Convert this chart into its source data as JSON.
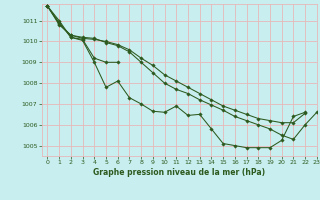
{
  "background_color": "#c8eef0",
  "grid_color": "#e8b8b8",
  "line_color": "#2d5a1e",
  "marker_color": "#2d5a1e",
  "xlabel": "Graphe pression niveau de la mer (hPa)",
  "ylim": [
    1004.5,
    1011.8
  ],
  "xlim": [
    -0.5,
    23
  ],
  "yticks": [
    1005,
    1006,
    1007,
    1008,
    1009,
    1010,
    1011
  ],
  "xticks": [
    0,
    1,
    2,
    3,
    4,
    5,
    6,
    7,
    8,
    9,
    10,
    11,
    12,
    13,
    14,
    15,
    16,
    17,
    18,
    19,
    20,
    21,
    22,
    23
  ],
  "series": [
    [
      1011.7,
      1011.0,
      1010.2,
      1010.05,
      1009.0,
      1007.8,
      1008.1,
      1007.3,
      1007.0,
      1006.65,
      1006.6,
      1006.9,
      1006.45,
      1006.5,
      1005.8,
      1005.1,
      1005.0,
      1004.9,
      1004.9,
      1004.9,
      1005.25,
      1006.4,
      1006.6,
      null
    ],
    [
      1011.7,
      1010.9,
      1010.2,
      1010.1,
      1009.2,
      1009.0,
      1009.0,
      null,
      null,
      null,
      null,
      null,
      null,
      null,
      null,
      null,
      null,
      null,
      null,
      null,
      null,
      null,
      null,
      null
    ],
    [
      1011.7,
      1010.8,
      1010.3,
      1010.15,
      1010.1,
      1010.0,
      1009.85,
      1009.6,
      1009.2,
      1008.85,
      1008.4,
      1008.1,
      1007.8,
      1007.5,
      1007.2,
      1006.9,
      1006.7,
      1006.5,
      1006.3,
      1006.2,
      1006.1,
      1006.1,
      1006.55,
      null
    ],
    [
      1011.7,
      1010.85,
      1010.3,
      1010.2,
      1010.15,
      1009.95,
      1009.8,
      1009.5,
      1009.0,
      1008.5,
      1008.0,
      1007.7,
      1007.5,
      1007.2,
      1006.95,
      1006.7,
      1006.4,
      1006.2,
      1006.0,
      1005.8,
      1005.5,
      1005.3,
      1006.0,
      1006.6
    ]
  ]
}
